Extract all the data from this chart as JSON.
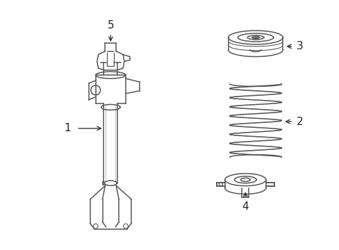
{
  "bg_color": "#ffffff",
  "line_color": "#555555",
  "label_color": "#222222",
  "figsize": [
    4.89,
    3.6
  ],
  "dpi": 100
}
